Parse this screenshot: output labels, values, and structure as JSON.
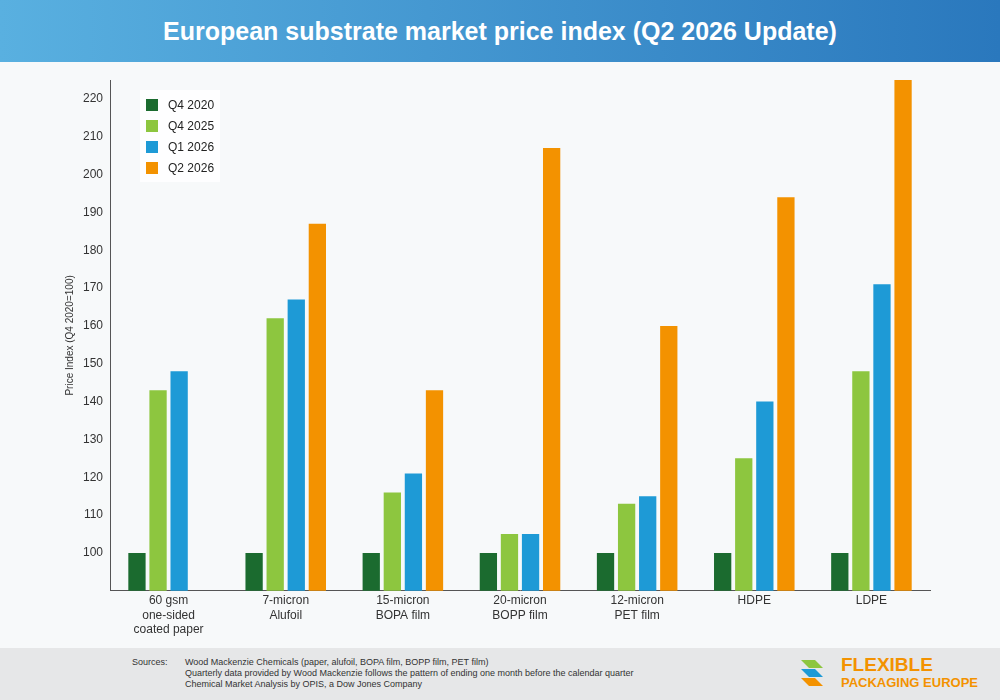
{
  "chart_data": {
    "type": "bar",
    "title": "European substrate market price index (Q2 2026 Update)",
    "y_label": "Price Index (Q4 2020=100)",
    "categories": [
      "60 gsm one-sided coated paper",
      "7-micron Alufoil",
      "15-micron BOPA film",
      "20-micron BOPP film",
      "12-micron PET film",
      "HDPE",
      "LDPE"
    ],
    "series": [
      {
        "name": "Q4 2020",
        "color": "#1b6b2f",
        "values": [
          100,
          100,
          100,
          100,
          100,
          100,
          100
        ]
      },
      {
        "name": "Q4 2025",
        "color": "#8dc63f",
        "values": [
          143,
          162,
          116,
          105,
          113,
          125,
          148
        ]
      },
      {
        "name": "Q1 2026",
        "color": "#1e9ad6",
        "values": [
          148,
          167,
          121,
          105,
          115,
          140,
          171
        ]
      },
      {
        "name": "Q2 2026",
        "color": "#f39200",
        "values": [
          null,
          187,
          143,
          207,
          160,
          194,
          225
        ]
      }
    ],
    "ylim": [
      90,
      225
    ],
    "yticks": [
      100,
      110,
      120,
      130,
      140,
      150,
      160,
      170,
      180,
      190,
      200,
      210,
      220
    ],
    "grid": false,
    "legend": "upper left",
    "footer": {
      "label": "Sources:",
      "lines": [
        "Wood Mackenzie Chemicals (paper, alufoil, BOPA film, BOPP film, PET film)",
        "Quarterly data provided by Wood Mackenzie follows the pattern of ending one month before the calendar quarter",
        "Chemical Market Analysis by OPIS, a Dow Jones Company"
      ],
      "logo": [
        "FLEXIBLE",
        "PACKAGING EUROPE"
      ]
    }
  }
}
